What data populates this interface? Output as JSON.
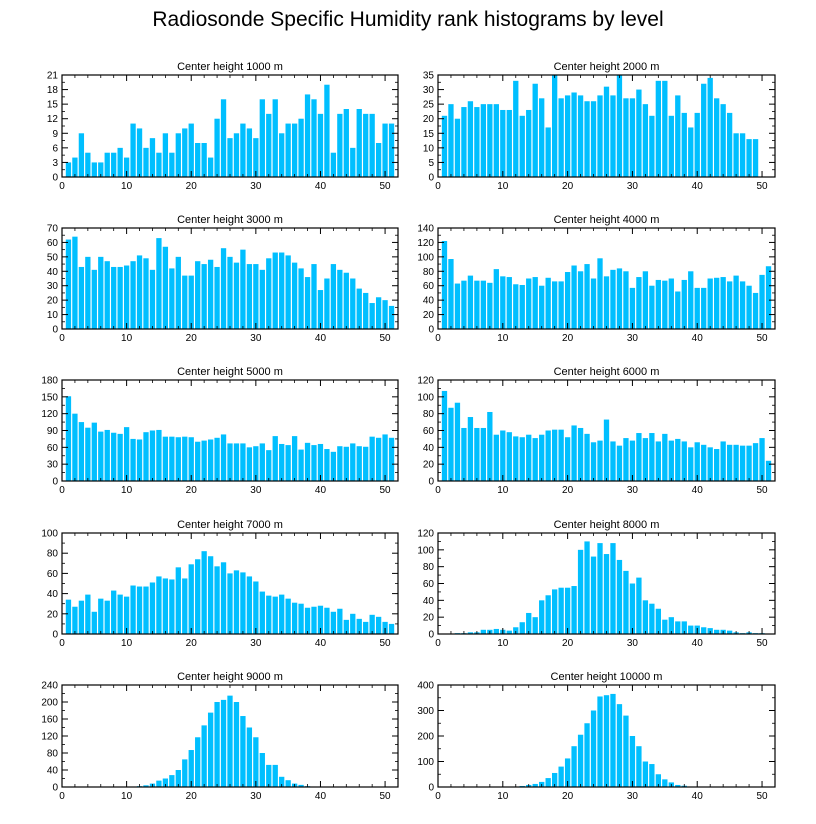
{
  "title": "Radiosonde Specific Humidity rank histograms by level",
  "colors": {
    "bar": "#00bfff",
    "axis": "#000000",
    "background": "#ffffff"
  },
  "chart_data": [
    {
      "type": "bar",
      "title": "Center height 1000 m",
      "x": [
        1,
        2,
        3,
        4,
        5,
        6,
        7,
        8,
        9,
        10,
        11,
        12,
        13,
        14,
        15,
        16,
        17,
        18,
        19,
        20,
        21,
        22,
        23,
        24,
        25,
        26,
        27,
        28,
        29,
        30,
        31,
        32,
        33,
        34,
        35,
        36,
        37,
        38,
        39,
        40,
        41,
        42,
        43,
        44,
        45,
        46,
        47,
        48,
        49,
        50,
        51
      ],
      "values": [
        3,
        4,
        9,
        5,
        3,
        3,
        5,
        5,
        6,
        4,
        11,
        10,
        6,
        8,
        5,
        9,
        5,
        9,
        10,
        11,
        7,
        7,
        4,
        12,
        16,
        8,
        9,
        11,
        10,
        8,
        16,
        13,
        16,
        9,
        11,
        11,
        12,
        17,
        16,
        13,
        19,
        5,
        13,
        14,
        6,
        14,
        13,
        13,
        7,
        11,
        11
      ],
      "xlim": [
        0,
        52
      ],
      "ylim": [
        0,
        21
      ],
      "xticks": [
        0,
        10,
        20,
        30,
        40,
        50
      ],
      "yticks": [
        0,
        3,
        6,
        9,
        12,
        15,
        18,
        21
      ]
    },
    {
      "type": "bar",
      "title": "Center height 2000 m",
      "x": [
        1,
        2,
        3,
        4,
        5,
        6,
        7,
        8,
        9,
        10,
        11,
        12,
        13,
        14,
        15,
        16,
        17,
        18,
        19,
        20,
        21,
        22,
        23,
        24,
        25,
        26,
        27,
        28,
        29,
        30,
        31,
        32,
        33,
        34,
        35,
        36,
        37,
        38,
        39,
        40,
        41,
        42,
        43,
        44,
        45,
        46,
        47,
        48,
        49,
        50,
        51
      ],
      "values": [
        21,
        25,
        20,
        24,
        26,
        24,
        25,
        25,
        25,
        23,
        23,
        33,
        21,
        23,
        32,
        27,
        17,
        35,
        27,
        28,
        29,
        28,
        26,
        26,
        28,
        31,
        28,
        35,
        27,
        27,
        30,
        25,
        21,
        33,
        33,
        21,
        28,
        22,
        17,
        22,
        32,
        34,
        27,
        25,
        22,
        15,
        15,
        13,
        13,
        0,
        0
      ],
      "xlim": [
        0,
        52
      ],
      "ylim": [
        0,
        35
      ],
      "xticks": [
        0,
        10,
        20,
        30,
        40,
        50
      ],
      "yticks": [
        0,
        5,
        10,
        15,
        20,
        25,
        30,
        35
      ]
    },
    {
      "type": "bar",
      "title": "Center height 3000 m",
      "x": [
        1,
        2,
        3,
        4,
        5,
        6,
        7,
        8,
        9,
        10,
        11,
        12,
        13,
        14,
        15,
        16,
        17,
        18,
        19,
        20,
        21,
        22,
        23,
        24,
        25,
        26,
        27,
        28,
        29,
        30,
        31,
        32,
        33,
        34,
        35,
        36,
        37,
        38,
        39,
        40,
        41,
        42,
        43,
        44,
        45,
        46,
        47,
        48,
        49,
        50,
        51
      ],
      "values": [
        62,
        64,
        43,
        50,
        41,
        50,
        47,
        43,
        43,
        44,
        47,
        51,
        49,
        41,
        63,
        57,
        42,
        50,
        37,
        37,
        47,
        45,
        48,
        43,
        56,
        50,
        46,
        55,
        45,
        45,
        41,
        49,
        53,
        53,
        51,
        46,
        42,
        36,
        45,
        27,
        35,
        45,
        41,
        39,
        35,
        28,
        25,
        18,
        22,
        20,
        16
      ],
      "xlim": [
        0,
        52
      ],
      "ylim": [
        0,
        70
      ],
      "xticks": [
        0,
        10,
        20,
        30,
        40,
        50
      ],
      "yticks": [
        0,
        10,
        20,
        30,
        40,
        50,
        60,
        70
      ]
    },
    {
      "type": "bar",
      "title": "Center height 4000 m",
      "x": [
        1,
        2,
        3,
        4,
        5,
        6,
        7,
        8,
        9,
        10,
        11,
        12,
        13,
        14,
        15,
        16,
        17,
        18,
        19,
        20,
        21,
        22,
        23,
        24,
        25,
        26,
        27,
        28,
        29,
        30,
        31,
        32,
        33,
        34,
        35,
        36,
        37,
        38,
        39,
        40,
        41,
        42,
        43,
        44,
        45,
        46,
        47,
        48,
        49,
        50,
        51
      ],
      "values": [
        122,
        97,
        63,
        67,
        74,
        67,
        67,
        64,
        83,
        73,
        72,
        62,
        61,
        70,
        72,
        60,
        71,
        66,
        66,
        79,
        88,
        80,
        90,
        70,
        98,
        73,
        82,
        84,
        80,
        57,
        72,
        80,
        60,
        68,
        67,
        70,
        52,
        68,
        80,
        57,
        57,
        70,
        71,
        72,
        66,
        74,
        66,
        60,
        50,
        75,
        87
      ],
      "xlim": [
        0,
        52
      ],
      "ylim": [
        0,
        140
      ],
      "xticks": [
        0,
        10,
        20,
        30,
        40,
        50
      ],
      "yticks": [
        0,
        20,
        40,
        60,
        80,
        100,
        120,
        140
      ]
    },
    {
      "type": "bar",
      "title": "Center height 5000 m",
      "x": [
        1,
        2,
        3,
        4,
        5,
        6,
        7,
        8,
        9,
        10,
        11,
        12,
        13,
        14,
        15,
        16,
        17,
        18,
        19,
        20,
        21,
        22,
        23,
        24,
        25,
        26,
        27,
        28,
        29,
        30,
        31,
        32,
        33,
        34,
        35,
        36,
        37,
        38,
        39,
        40,
        41,
        42,
        43,
        44,
        45,
        46,
        47,
        48,
        49,
        50,
        51
      ],
      "values": [
        151,
        120,
        105,
        95,
        104,
        88,
        91,
        86,
        84,
        96,
        75,
        74,
        87,
        90,
        91,
        79,
        79,
        78,
        79,
        78,
        70,
        72,
        74,
        77,
        83,
        67,
        67,
        67,
        60,
        62,
        67,
        55,
        80,
        66,
        64,
        80,
        56,
        68,
        64,
        66,
        57,
        52,
        62,
        61,
        67,
        62,
        61,
        79,
        77,
        83,
        77
      ],
      "xlim": [
        0,
        52
      ],
      "ylim": [
        0,
        180
      ],
      "xticks": [
        0,
        10,
        20,
        30,
        40,
        50
      ],
      "yticks": [
        0,
        30,
        60,
        90,
        120,
        150,
        180
      ]
    },
    {
      "type": "bar",
      "title": "Center height 6000 m",
      "x": [
        1,
        2,
        3,
        4,
        5,
        6,
        7,
        8,
        9,
        10,
        11,
        12,
        13,
        14,
        15,
        16,
        17,
        18,
        19,
        20,
        21,
        22,
        23,
        24,
        25,
        26,
        27,
        28,
        29,
        30,
        31,
        32,
        33,
        34,
        35,
        36,
        37,
        38,
        39,
        40,
        41,
        42,
        43,
        44,
        45,
        46,
        47,
        48,
        49,
        50,
        51
      ],
      "values": [
        107,
        87,
        93,
        63,
        76,
        63,
        63,
        82,
        55,
        60,
        58,
        53,
        52,
        55,
        51,
        55,
        60,
        61,
        61,
        52,
        66,
        63,
        56,
        46,
        48,
        73,
        47,
        42,
        51,
        48,
        57,
        51,
        57,
        47,
        56,
        48,
        50,
        47,
        40,
        46,
        43,
        40,
        38,
        47,
        43,
        43,
        42,
        42,
        45,
        51,
        24
      ],
      "xlim": [
        0,
        52
      ],
      "ylim": [
        0,
        120
      ],
      "xticks": [
        0,
        10,
        20,
        30,
        40,
        50
      ],
      "yticks": [
        0,
        20,
        40,
        60,
        80,
        100,
        120
      ]
    },
    {
      "type": "bar",
      "title": "Center height 7000 m",
      "x": [
        1,
        2,
        3,
        4,
        5,
        6,
        7,
        8,
        9,
        10,
        11,
        12,
        13,
        14,
        15,
        16,
        17,
        18,
        19,
        20,
        21,
        22,
        23,
        24,
        25,
        26,
        27,
        28,
        29,
        30,
        31,
        32,
        33,
        34,
        35,
        36,
        37,
        38,
        39,
        40,
        41,
        42,
        43,
        44,
        45,
        46,
        47,
        48,
        49,
        50,
        51
      ],
      "values": [
        34,
        27,
        33,
        39,
        22,
        35,
        33,
        43,
        39,
        37,
        48,
        47,
        47,
        51,
        57,
        55,
        54,
        66,
        55,
        69,
        74,
        82,
        77,
        67,
        71,
        60,
        63,
        61,
        57,
        52,
        42,
        38,
        37,
        39,
        35,
        31,
        30,
        26,
        27,
        28,
        26,
        22,
        25,
        14,
        20,
        15,
        12,
        19,
        17,
        12,
        10
      ],
      "xlim": [
        0,
        52
      ],
      "ylim": [
        0,
        100
      ],
      "xticks": [
        0,
        10,
        20,
        30,
        40,
        50
      ],
      "yticks": [
        0,
        20,
        40,
        60,
        80,
        100
      ]
    },
    {
      "type": "bar",
      "title": "Center height 8000 m",
      "x": [
        1,
        2,
        3,
        4,
        5,
        6,
        7,
        8,
        9,
        10,
        11,
        12,
        13,
        14,
        15,
        16,
        17,
        18,
        19,
        20,
        21,
        22,
        23,
        24,
        25,
        26,
        27,
        28,
        29,
        30,
        31,
        32,
        33,
        34,
        35,
        36,
        37,
        38,
        39,
        40,
        41,
        42,
        43,
        44,
        45,
        46,
        47,
        48,
        49,
        50,
        51
      ],
      "values": [
        0,
        0,
        1,
        1,
        2,
        2,
        5,
        5,
        6,
        5,
        4,
        8,
        14,
        25,
        20,
        40,
        46,
        53,
        55,
        55,
        57,
        100,
        110,
        92,
        108,
        95,
        108,
        88,
        75,
        60,
        67,
        40,
        36,
        30,
        17,
        20,
        15,
        15,
        10,
        10,
        8,
        7,
        5,
        5,
        4,
        2,
        1,
        2,
        1,
        1,
        0
      ],
      "xlim": [
        0,
        52
      ],
      "ylim": [
        0,
        120
      ],
      "xticks": [
        0,
        10,
        20,
        30,
        40,
        50
      ],
      "yticks": [
        0,
        20,
        40,
        60,
        80,
        100,
        120
      ]
    },
    {
      "type": "bar",
      "title": "Center height 9000 m",
      "x": [
        1,
        2,
        3,
        4,
        5,
        6,
        7,
        8,
        9,
        10,
        11,
        12,
        13,
        14,
        15,
        16,
        17,
        18,
        19,
        20,
        21,
        22,
        23,
        24,
        25,
        26,
        27,
        28,
        29,
        30,
        31,
        32,
        33,
        34,
        35,
        36,
        37,
        38,
        39,
        40,
        41,
        42,
        43,
        44,
        45,
        46,
        47,
        48,
        49,
        50,
        51
      ],
      "values": [
        1,
        0,
        0,
        0,
        0,
        1,
        1,
        1,
        1,
        1,
        1,
        2,
        4,
        8,
        15,
        20,
        28,
        40,
        65,
        87,
        117,
        145,
        175,
        200,
        205,
        215,
        200,
        167,
        140,
        117,
        80,
        52,
        52,
        24,
        16,
        8,
        5,
        2,
        1,
        1,
        0,
        0,
        0,
        0,
        0,
        0,
        0,
        0,
        0,
        1,
        0
      ],
      "xlim": [
        0,
        52
      ],
      "ylim": [
        0,
        240
      ],
      "xticks": [
        0,
        10,
        20,
        30,
        40,
        50
      ],
      "yticks": [
        0,
        40,
        80,
        120,
        160,
        200,
        240
      ]
    },
    {
      "type": "bar",
      "title": "Center height 10000 m",
      "x": [
        1,
        2,
        3,
        4,
        5,
        6,
        7,
        8,
        9,
        10,
        11,
        12,
        13,
        14,
        15,
        16,
        17,
        18,
        19,
        20,
        21,
        22,
        23,
        24,
        25,
        26,
        27,
        28,
        29,
        30,
        31,
        32,
        33,
        34,
        35,
        36,
        37,
        38,
        39,
        40,
        41,
        42,
        43,
        44,
        45,
        46,
        47,
        48,
        49,
        50,
        51
      ],
      "values": [
        0,
        0,
        0,
        0,
        0,
        0,
        0,
        0,
        1,
        0,
        1,
        2,
        4,
        8,
        12,
        20,
        35,
        55,
        80,
        112,
        160,
        205,
        250,
        300,
        355,
        360,
        365,
        325,
        280,
        200,
        160,
        100,
        90,
        50,
        30,
        18,
        8,
        5,
        2,
        1,
        1,
        0,
        0,
        0,
        0,
        0,
        0,
        0,
        0,
        0,
        0
      ],
      "xlim": [
        0,
        52
      ],
      "ylim": [
        0,
        400
      ],
      "xticks": [
        0,
        10,
        20,
        30,
        40,
        50
      ],
      "yticks": [
        0,
        100,
        200,
        300,
        400
      ]
    }
  ]
}
